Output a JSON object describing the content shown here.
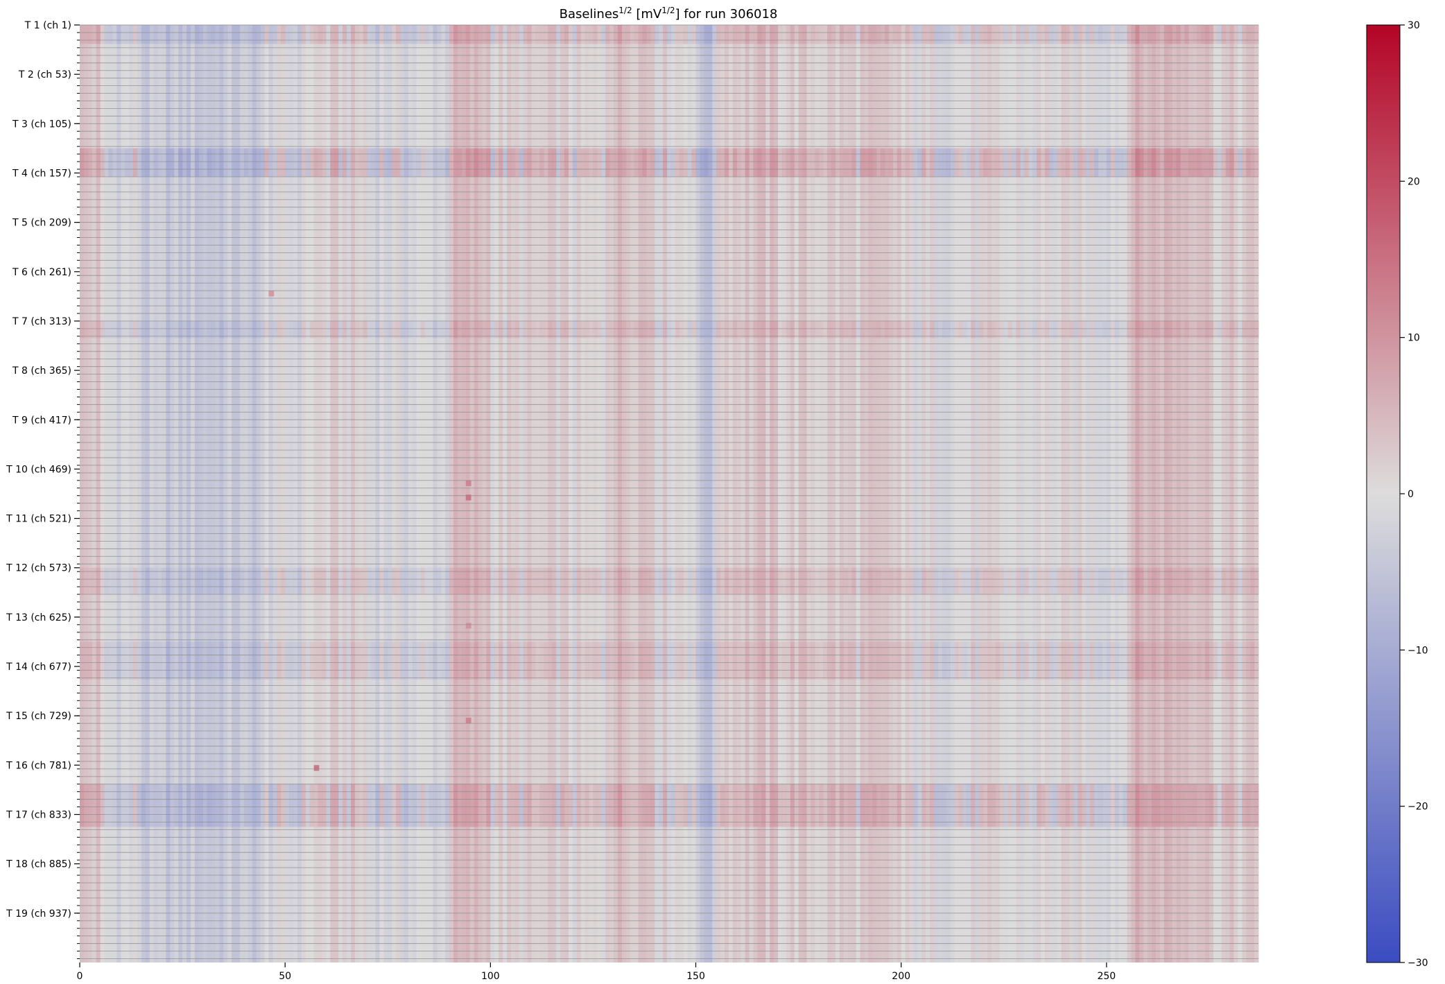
{
  "chart_data": {
    "type": "heatmap",
    "title": {
      "prefix": "Baselines",
      "sup1": "1/2",
      "middle": " [mV",
      "sup2": "1/2",
      "suffix": "] for run 306018"
    },
    "xlabel": "",
    "ylabel": "",
    "xlim": [
      0,
      287
    ],
    "n_columns": 287,
    "n_rows": 988,
    "rows_per_group": 52,
    "minor_tick_step": 8,
    "x_ticks": [
      0,
      50,
      100,
      150,
      200,
      250
    ],
    "y_tick_labels": [
      {
        "row": 0,
        "label": "T 1 (ch 1)"
      },
      {
        "row": 52,
        "label": "T 2 (ch 53)"
      },
      {
        "row": 104,
        "label": "T 3 (ch 105)"
      },
      {
        "row": 156,
        "label": "T 4 (ch 157)"
      },
      {
        "row": 208,
        "label": "T 5 (ch 209)"
      },
      {
        "row": 260,
        "label": "T 6 (ch 261)"
      },
      {
        "row": 312,
        "label": "T 7 (ch 313)"
      },
      {
        "row": 364,
        "label": "T 8 (ch 365)"
      },
      {
        "row": 416,
        "label": "T 9 (ch 417)"
      },
      {
        "row": 468,
        "label": "T 10 (ch 469)"
      },
      {
        "row": 520,
        "label": "T 11 (ch 521)"
      },
      {
        "row": 572,
        "label": "T 12 (ch 573)"
      },
      {
        "row": 624,
        "label": "T 13 (ch 625)"
      },
      {
        "row": 676,
        "label": "T 14 (ch 677)"
      },
      {
        "row": 728,
        "label": "T 15 (ch 729)"
      },
      {
        "row": 780,
        "label": "T 16 (ch 781)"
      },
      {
        "row": 832,
        "label": "T 17 (ch 833)"
      },
      {
        "row": 884,
        "label": "T 18 (ch 885)"
      },
      {
        "row": 936,
        "label": "T 19 (ch 937)"
      }
    ],
    "column_bands": [
      {
        "from": 0,
        "to": 5,
        "value": 3
      },
      {
        "from": 5,
        "to": 15,
        "value": -1
      },
      {
        "from": 15,
        "to": 45,
        "value": -4
      },
      {
        "from": 45,
        "to": 55,
        "value": -1
      },
      {
        "from": 55,
        "to": 70,
        "value": 1
      },
      {
        "from": 70,
        "to": 90,
        "value": -1
      },
      {
        "from": 90,
        "to": 100,
        "value": 4
      },
      {
        "from": 100,
        "to": 120,
        "value": 1
      },
      {
        "from": 120,
        "to": 128,
        "value": 0
      },
      {
        "from": 128,
        "to": 140,
        "value": 4
      },
      {
        "from": 140,
        "to": 150,
        "value": 1
      },
      {
        "from": 150,
        "to": 155,
        "value": -5
      },
      {
        "from": 155,
        "to": 170,
        "value": 3
      },
      {
        "from": 170,
        "to": 200,
        "value": 2
      },
      {
        "from": 200,
        "to": 255,
        "value": 0
      },
      {
        "from": 255,
        "to": 275,
        "value": 5
      },
      {
        "from": 275,
        "to": 287,
        "value": 2
      }
    ],
    "highlight_rows": [
      {
        "from": 0,
        "to": 20,
        "offset": 4
      },
      {
        "from": 130,
        "to": 160,
        "offset": 6
      },
      {
        "from": 312,
        "to": 330,
        "offset": 3
      },
      {
        "from": 572,
        "to": 600,
        "offset": 3
      },
      {
        "from": 650,
        "to": 690,
        "offset": 3
      },
      {
        "from": 800,
        "to": 845,
        "offset": 5
      }
    ],
    "hot_cells": [
      {
        "x": 94,
        "row": 480,
        "value": 12
      },
      {
        "x": 94,
        "row": 495,
        "value": 14
      },
      {
        "x": 94,
        "row": 630,
        "value": 10
      },
      {
        "x": 94,
        "row": 730,
        "value": 12
      },
      {
        "x": 57,
        "row": 780,
        "value": 14
      },
      {
        "x": 46,
        "row": 280,
        "value": 9
      }
    ],
    "colorbar": {
      "vmin": -30,
      "vmax": 30,
      "ticks": [
        30,
        20,
        10,
        0,
        -10,
        -20,
        -30
      ],
      "tick_labels": [
        "30",
        "20",
        "10",
        "0",
        "−10",
        "−20",
        "−30"
      ],
      "colormap": "coolwarm",
      "colors": {
        "low": "#3b4cc0",
        "mid": "#dddcdc",
        "high": "#b40426"
      }
    }
  }
}
